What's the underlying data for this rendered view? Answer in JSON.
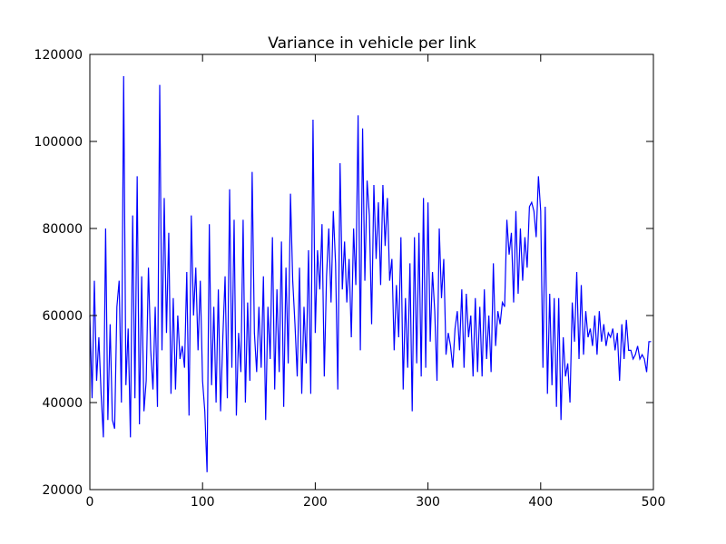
{
  "chart_data": {
    "type": "line",
    "title": "Variance in vehicle per link",
    "color": "#0000ff",
    "x": [
      0,
      2,
      4,
      6,
      8,
      10,
      12,
      14,
      16,
      18,
      20,
      22,
      24,
      26,
      28,
      30,
      32,
      34,
      36,
      38,
      40,
      42,
      44,
      46,
      48,
      50,
      52,
      54,
      56,
      58,
      60,
      62,
      64,
      66,
      68,
      70,
      72,
      74,
      76,
      78,
      80,
      82,
      84,
      86,
      88,
      90,
      92,
      94,
      96,
      98,
      100,
      102,
      104,
      106,
      108,
      110,
      112,
      114,
      116,
      118,
      120,
      122,
      124,
      126,
      128,
      130,
      132,
      134,
      136,
      138,
      140,
      142,
      144,
      146,
      148,
      150,
      152,
      154,
      156,
      158,
      160,
      162,
      164,
      166,
      168,
      170,
      172,
      174,
      176,
      178,
      180,
      182,
      184,
      186,
      188,
      190,
      192,
      194,
      196,
      198,
      200,
      202,
      204,
      206,
      208,
      210,
      212,
      214,
      216,
      218,
      220,
      222,
      224,
      226,
      228,
      230,
      232,
      234,
      236,
      238,
      240,
      242,
      244,
      246,
      248,
      250,
      252,
      254,
      256,
      258,
      260,
      262,
      264,
      266,
      268,
      270,
      272,
      274,
      276,
      278,
      280,
      282,
      284,
      286,
      288,
      290,
      292,
      294,
      296,
      298,
      300,
      302,
      304,
      306,
      308,
      310,
      312,
      314,
      316,
      318,
      320,
      322,
      324,
      326,
      328,
      330,
      332,
      334,
      336,
      338,
      340,
      342,
      344,
      346,
      348,
      350,
      352,
      354,
      356,
      358,
      360,
      362,
      364,
      366,
      368,
      370,
      372,
      374,
      376,
      378,
      380,
      382,
      384,
      386,
      388,
      390,
      392,
      394,
      396,
      398,
      400,
      402,
      404,
      406,
      408,
      410,
      412,
      414,
      416,
      418,
      420,
      422,
      424,
      426,
      428,
      430,
      432,
      434,
      436,
      438,
      440,
      442,
      444,
      446,
      448,
      450,
      452,
      454,
      456,
      458,
      460,
      462,
      464,
      466,
      468,
      470,
      472,
      474,
      476,
      478,
      480,
      482,
      484,
      486,
      488,
      490,
      492,
      494,
      496,
      498
    ],
    "values": [
      60000,
      41000,
      68000,
      45000,
      55000,
      42000,
      32000,
      80000,
      36000,
      58000,
      36000,
      34000,
      62000,
      68000,
      40000,
      115000,
      44000,
      57000,
      32000,
      83000,
      41000,
      92000,
      35000,
      69000,
      38000,
      45000,
      71000,
      52000,
      43000,
      62000,
      39000,
      113000,
      52000,
      87000,
      56000,
      79000,
      42000,
      64000,
      43000,
      60000,
      50000,
      53000,
      48000,
      70000,
      37000,
      83000,
      60000,
      71000,
      52000,
      68000,
      45000,
      38000,
      24000,
      81000,
      44000,
      62000,
      40000,
      66000,
      38000,
      55000,
      69000,
      41000,
      89000,
      48000,
      82000,
      37000,
      56000,
      47000,
      82000,
      40000,
      63000,
      45000,
      93000,
      56000,
      47000,
      62000,
      48000,
      69000,
      36000,
      62000,
      50000,
      78000,
      43000,
      66000,
      47000,
      77000,
      39000,
      71000,
      49000,
      88000,
      68000,
      58000,
      46000,
      71000,
      42000,
      62000,
      49000,
      75000,
      42000,
      105000,
      56000,
      75000,
      66000,
      81000,
      46000,
      69000,
      80000,
      63000,
      84000,
      72000,
      43000,
      95000,
      66000,
      77000,
      63000,
      73000,
      55000,
      80000,
      67000,
      106000,
      52000,
      103000,
      68000,
      91000,
      83000,
      58000,
      90000,
      73000,
      86000,
      67000,
      90000,
      76000,
      87000,
      68000,
      73000,
      52000,
      67000,
      55000,
      78000,
      43000,
      64000,
      48000,
      72000,
      38000,
      78000,
      49000,
      79000,
      46000,
      87000,
      48000,
      86000,
      54000,
      70000,
      61000,
      45000,
      80000,
      64000,
      73000,
      51000,
      56000,
      53000,
      48000,
      57000,
      61000,
      52000,
      66000,
      48000,
      65000,
      55000,
      60000,
      46000,
      64000,
      47000,
      62000,
      46000,
      66000,
      50000,
      60000,
      47000,
      72000,
      53000,
      61000,
      58000,
      63000,
      62000,
      82000,
      74000,
      79000,
      63000,
      84000,
      65000,
      80000,
      68000,
      78000,
      71000,
      85000,
      86000,
      84000,
      78000,
      92000,
      84000,
      48000,
      85000,
      42000,
      65000,
      44000,
      64000,
      39000,
      64000,
      36000,
      55000,
      46000,
      49000,
      40000,
      63000,
      54000,
      70000,
      50000,
      67000,
      51000,
      61000,
      55000,
      57000,
      53000,
      60000,
      51000,
      61000,
      54000,
      58000,
      53000,
      56000,
      55000,
      57000,
      52000,
      56000,
      45000,
      58000,
      50000,
      59000,
      52000,
      52000,
      50000,
      51000,
      53000,
      50000,
      51000,
      50000,
      47000,
      54000,
      54000
    ],
    "xlim": [
      0,
      500
    ],
    "xticks": [
      0,
      100,
      200,
      300,
      400,
      500
    ],
    "ylim": [
      20000,
      120000
    ],
    "yticks": [
      20000,
      40000,
      60000,
      80000,
      100000,
      120000
    ]
  }
}
